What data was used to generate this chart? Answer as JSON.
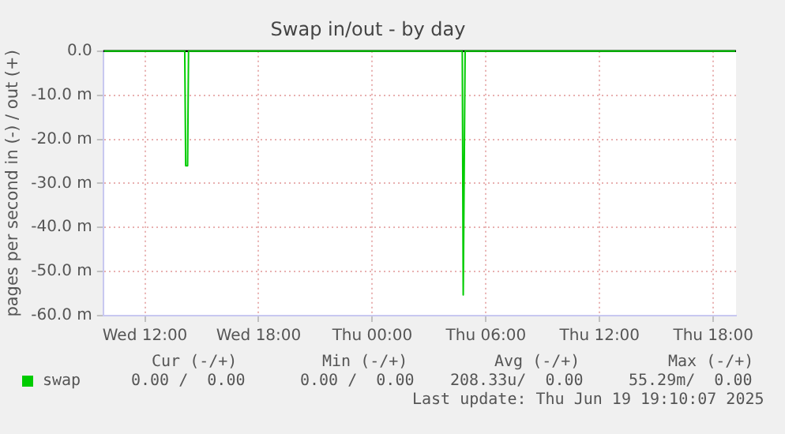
{
  "chart_data": {
    "type": "line",
    "title": "Swap in/out - by day",
    "ylabel": "pages per second in (-) / out (+)",
    "xlim": [
      "2025-06-18T09:48",
      "2025-06-19T19:12"
    ],
    "xticks": [
      {
        "value": "2025-06-18T12:00",
        "label": "Wed 12:00"
      },
      {
        "value": "2025-06-18T18:00",
        "label": "Wed 18:00"
      },
      {
        "value": "2025-06-19T00:00",
        "label": "Thu 00:00"
      },
      {
        "value": "2025-06-19T06:00",
        "label": "Thu 06:00"
      },
      {
        "value": "2025-06-19T12:00",
        "label": "Thu 12:00"
      },
      {
        "value": "2025-06-19T18:00",
        "label": "Thu 18:00"
      }
    ],
    "ylim": [
      -60,
      0
    ],
    "yticks": [
      {
        "value": -60,
        "label": "-60.0 m"
      },
      {
        "value": -50,
        "label": "-50.0 m"
      },
      {
        "value": -40,
        "label": "-40.0 m"
      },
      {
        "value": -30,
        "label": "-30.0 m"
      },
      {
        "value": -20,
        "label": "-20.0 m"
      },
      {
        "value": -10,
        "label": "-10.0 m"
      },
      {
        "value": 0,
        "label": "0.0"
      }
    ],
    "series": [
      {
        "name": "swap",
        "color": "#00cc00",
        "x": [
          "2025-06-18T09:51",
          "2025-06-18T14:06",
          "2025-06-18T14:09",
          "2025-06-18T14:15",
          "2025-06-18T14:18",
          "2025-06-19T04:45",
          "2025-06-19T04:48",
          "2025-06-19T04:51",
          "2025-06-19T04:54",
          "2025-06-19T19:10"
        ],
        "values": [
          0,
          0,
          -26,
          -26,
          0,
          0,
          -55.3,
          -55.3,
          0,
          0
        ]
      }
    ],
    "ref_lines": [
      {
        "axis": "y",
        "value": 0,
        "color": "#000000"
      }
    ],
    "grid": true,
    "legend": "bottom",
    "marker": "none",
    "line_style": "solid",
    "annotations": [
      "Cur (-/+)",
      "Min (-/+)",
      "Avg (-/+)",
      "Max (-/+)",
      "0.00 /  0.00",
      "0.00 /  0.00",
      "208.33u/  0.00",
      "55.29m/  0.00",
      "Last update: Thu Jun 19 19:10:07 2025"
    ]
  }
}
